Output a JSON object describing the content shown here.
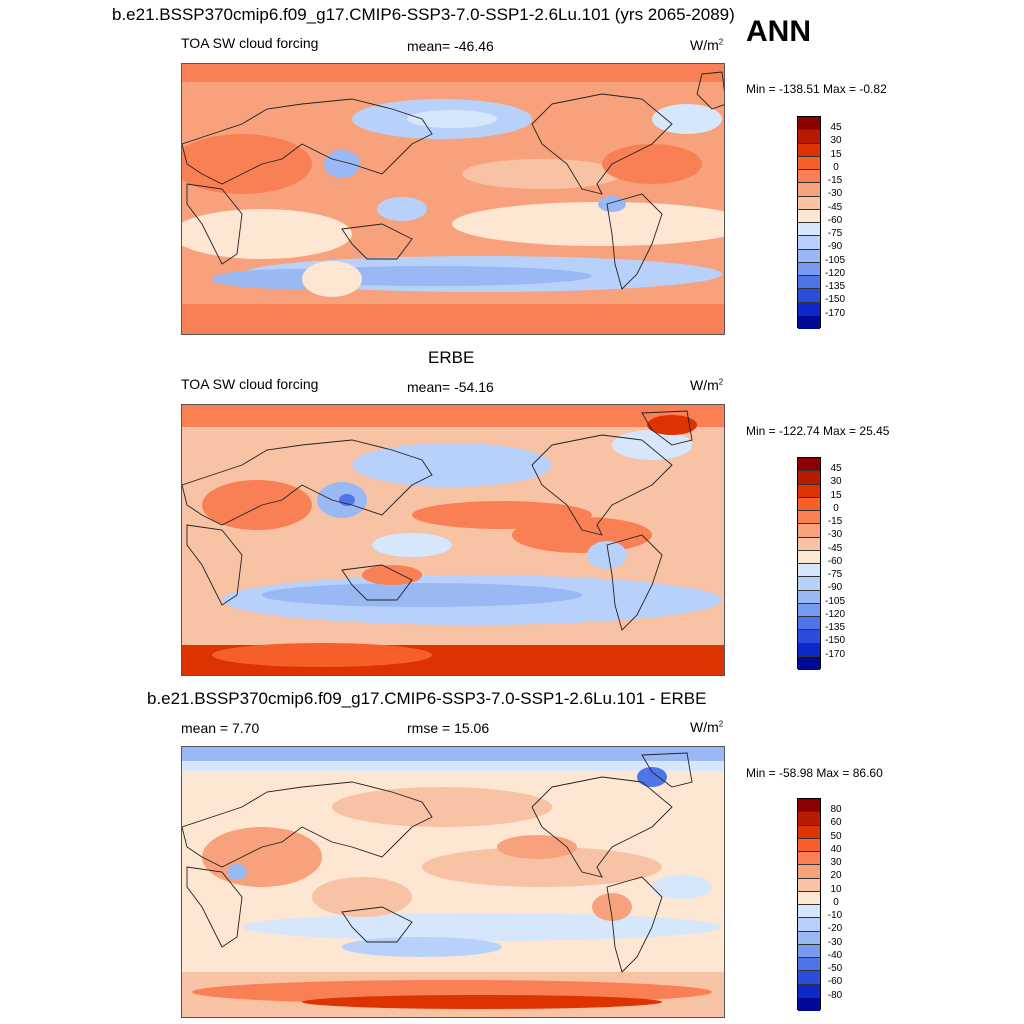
{
  "header": {
    "run_title": "b.e21.BSSP370cmip6.f09_g17.CMIP6-SSP3-7.0-SSP1-2.6Lu.101 (yrs 2065-2089)",
    "season": "ANN"
  },
  "panels": [
    {
      "title": "",
      "left_label": "TOA SW cloud forcing",
      "center_label": "mean= -46.46",
      "units": "W/m",
      "units_sup": "2",
      "minmax": "Min = -138.51 Max =  -0.82",
      "colorbar_labels": [
        "45",
        "30",
        "15",
        "0",
        "-15",
        "-30",
        "-45",
        "-60",
        "-75",
        "-90",
        "-105",
        "-120",
        "-135",
        "-150",
        "-170"
      ]
    },
    {
      "title": "ERBE",
      "left_label": "TOA SW cloud forcing",
      "center_label": "mean= -54.16",
      "units": "W/m",
      "units_sup": "2",
      "minmax": "Min = -122.74 Max =  25.45",
      "colorbar_labels": [
        "45",
        "30",
        "15",
        "0",
        "-15",
        "-30",
        "-45",
        "-60",
        "-75",
        "-90",
        "-105",
        "-120",
        "-135",
        "-150",
        "-170"
      ]
    },
    {
      "title": "b.e21.BSSP370cmip6.f09_g17.CMIP6-SSP3-7.0-SSP1-2.6Lu.101 - ERBE",
      "left_label": "mean =   7.70",
      "center_label": "rmse =  15.06",
      "units": "W/m",
      "units_sup": "2",
      "minmax": "Min = -58.98 Max =  86.60",
      "colorbar_labels": [
        "80",
        "60",
        "50",
        "40",
        "30",
        "20",
        "10",
        "0",
        "-10",
        "-20",
        "-30",
        "-40",
        "-50",
        "-60",
        "-80"
      ]
    }
  ],
  "colorbar_colors": [
    "#8b0000",
    "#b81c00",
    "#dd3300",
    "#f75f2a",
    "#f98054",
    "#f7a27c",
    "#f8c2a4",
    "#fde6d2",
    "#d6e6fb",
    "#b8d1fa",
    "#99b8f4",
    "#7799f0",
    "#4e74e8",
    "#2a4ddb",
    "#0d27c8",
    "#000a96"
  ]
}
